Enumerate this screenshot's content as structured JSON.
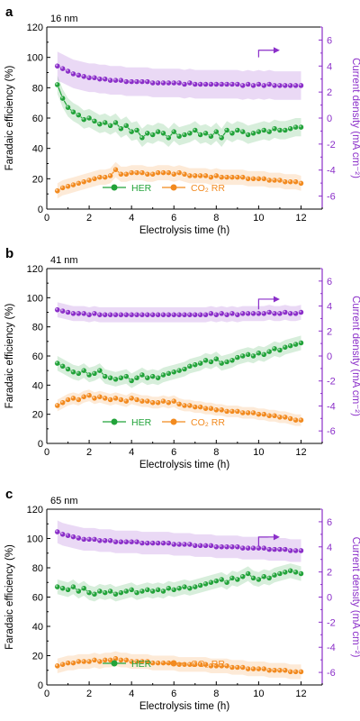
{
  "colors": {
    "her": "#22a33a",
    "co2rr": "#f28a1f",
    "current": "#8b2fc9",
    "axis": "#000000"
  },
  "common": {
    "xlabel": "Electrolysis time (h)",
    "ylabel_left": "Faradaic efficiency (%)",
    "ylabel_right": "Current density (mA cm⁻²)",
    "legend_her": "HER",
    "legend_co2rr": "CO₂ RR"
  },
  "chart_data": [
    {
      "type": "line",
      "panel_label": "a",
      "thickness_label": "16 nm",
      "xlabel": "Electrolysis time (h)",
      "ylabel_left": "Faradaic efficiency (%)",
      "ylabel_right": "Current density (mA cm⁻²)",
      "xlim": [
        0,
        13
      ],
      "ylim_left": [
        0,
        120
      ],
      "ylim_right": [
        -7,
        7
      ],
      "xticks": [
        "0",
        "2",
        "4",
        "6",
        "8",
        "10",
        "12"
      ],
      "yticks_left": [
        "0",
        "20",
        "40",
        "60",
        "80",
        "100",
        "120"
      ],
      "yticks_right": [
        "-6",
        "-4",
        "-2",
        "0",
        "2",
        "4",
        "6"
      ],
      "arrow": {
        "x_from": 10,
        "x_to": 11,
        "y_left": 100,
        "y_top": 104.7
      },
      "series": [
        {
          "name": "HER",
          "axis": "left",
          "band": 6,
          "x": [
            0.5,
            0.75,
            1,
            1.25,
            1.5,
            1.75,
            2,
            2.25,
            2.5,
            2.75,
            3,
            3.25,
            3.5,
            3.75,
            4,
            4.25,
            4.5,
            4.75,
            5,
            5.25,
            5.5,
            5.75,
            6,
            6.25,
            6.5,
            6.75,
            7,
            7.25,
            7.5,
            7.75,
            8,
            8.25,
            8.5,
            8.75,
            9,
            9.25,
            9.5,
            9.75,
            10,
            10.25,
            10.5,
            10.75,
            11,
            11.25,
            11.5,
            11.75,
            12
          ],
          "y": [
            82,
            73,
            67,
            64,
            62,
            59,
            60,
            58,
            56,
            57,
            55,
            57,
            53,
            55,
            51,
            52,
            47,
            50,
            49,
            51,
            50,
            47,
            51,
            48,
            49,
            50,
            52,
            49,
            50,
            48,
            51,
            47,
            52,
            50,
            52,
            51,
            49,
            50,
            51,
            52,
            51,
            53,
            52,
            52,
            53,
            54,
            54
          ]
        },
        {
          "name": "CO₂ RR",
          "axis": "left",
          "band": 5,
          "x": [
            0.5,
            0.75,
            1,
            1.25,
            1.5,
            1.75,
            2,
            2.25,
            2.5,
            2.75,
            3,
            3.25,
            3.5,
            3.75,
            4,
            4.25,
            4.5,
            4.75,
            5,
            5.25,
            5.5,
            5.75,
            6,
            6.25,
            6.5,
            6.75,
            7,
            7.25,
            7.5,
            7.75,
            8,
            8.25,
            8.5,
            8.75,
            9,
            9.25,
            9.5,
            9.75,
            10,
            10.25,
            10.5,
            10.75,
            11,
            11.25,
            11.5,
            11.75,
            12
          ],
          "y": [
            12,
            14,
            15,
            16,
            17,
            18,
            19,
            20,
            21,
            21,
            22,
            26,
            23,
            23,
            24,
            24,
            24,
            23,
            23,
            24,
            24,
            24,
            23,
            24,
            23,
            22,
            22,
            22,
            22,
            21,
            22,
            21,
            21,
            21,
            21,
            21,
            20,
            20,
            20,
            20,
            19,
            19,
            19,
            18,
            18,
            18,
            17
          ]
        },
        {
          "name": "Current density",
          "axis": "right",
          "band": 1.1,
          "x": [
            0.5,
            0.75,
            1,
            1.25,
            1.5,
            1.75,
            2,
            2.25,
            2.5,
            2.75,
            3,
            3.25,
            3.5,
            3.75,
            4,
            4.25,
            4.5,
            4.75,
            5,
            5.25,
            5.5,
            5.75,
            6,
            6.25,
            6.5,
            6.75,
            7,
            7.25,
            7.5,
            7.75,
            8,
            8.25,
            8.5,
            8.75,
            9,
            9.25,
            9.5,
            9.75,
            10,
            10.25,
            10.5,
            10.75,
            11,
            11.25,
            11.5,
            11.75,
            12
          ],
          "y": [
            4.0,
            3.8,
            3.6,
            3.4,
            3.3,
            3.2,
            3.1,
            3.1,
            3.0,
            3.0,
            2.9,
            2.9,
            2.9,
            2.8,
            2.8,
            2.8,
            2.8,
            2.8,
            2.7,
            2.7,
            2.7,
            2.7,
            2.7,
            2.7,
            2.6,
            2.7,
            2.6,
            2.6,
            2.6,
            2.6,
            2.6,
            2.6,
            2.6,
            2.6,
            2.6,
            2.5,
            2.6,
            2.5,
            2.6,
            2.5,
            2.6,
            2.5,
            2.5,
            2.5,
            2.5,
            2.5,
            2.5
          ]
        }
      ]
    },
    {
      "type": "line",
      "panel_label": "b",
      "thickness_label": "41 nm",
      "xlabel": "Electrolysis time (h)",
      "ylabel_left": "Faradaic efficiency (%)",
      "ylabel_right": "Current density (mA cm⁻²)",
      "xlim": [
        0,
        13
      ],
      "ylim_left": [
        0,
        120
      ],
      "ylim_right": [
        -7,
        7
      ],
      "xticks": [
        "0",
        "2",
        "4",
        "6",
        "8",
        "10",
        "12"
      ],
      "yticks_left": [
        "0",
        "20",
        "40",
        "60",
        "80",
        "100",
        "120"
      ],
      "yticks_right": [
        "-6",
        "-4",
        "-2",
        "0",
        "2",
        "4",
        "6"
      ],
      "arrow": {
        "x_from": 10,
        "x_to": 11,
        "y_left": 92,
        "y_top": 99
      },
      "series": [
        {
          "name": "HER",
          "axis": "left",
          "band": 5,
          "x": [
            0.5,
            0.75,
            1,
            1.25,
            1.5,
            1.75,
            2,
            2.25,
            2.5,
            2.75,
            3,
            3.25,
            3.5,
            3.75,
            4,
            4.25,
            4.5,
            4.75,
            5,
            5.25,
            5.5,
            5.75,
            6,
            6.25,
            6.5,
            6.75,
            7,
            7.25,
            7.5,
            7.75,
            8,
            8.25,
            8.5,
            8.75,
            9,
            9.25,
            9.5,
            9.75,
            10,
            10.25,
            10.5,
            10.75,
            11,
            11.25,
            11.5,
            11.75,
            12
          ],
          "y": [
            55,
            53,
            51,
            49,
            48,
            50,
            47,
            48,
            50,
            46,
            45,
            44,
            45,
            46,
            43,
            45,
            47,
            45,
            46,
            45,
            47,
            48,
            49,
            50,
            51,
            53,
            54,
            55,
            57,
            56,
            58,
            55,
            56,
            57,
            59,
            60,
            61,
            60,
            62,
            61,
            63,
            65,
            64,
            66,
            67,
            68,
            69
          ]
        },
        {
          "name": "CO₂ RR",
          "axis": "left",
          "band": 4,
          "x": [
            0.5,
            0.75,
            1,
            1.25,
            1.5,
            1.75,
            2,
            2.25,
            2.5,
            2.75,
            3,
            3.25,
            3.5,
            3.75,
            4,
            4.25,
            4.5,
            4.75,
            5,
            5.25,
            5.5,
            5.75,
            6,
            6.25,
            6.5,
            6.75,
            7,
            7.25,
            7.5,
            7.75,
            8,
            8.25,
            8.5,
            8.75,
            9,
            9.25,
            9.5,
            9.75,
            10,
            10.25,
            10.5,
            10.75,
            11,
            11.25,
            11.5,
            11.75,
            12
          ],
          "y": [
            26,
            28,
            30,
            31,
            30,
            32,
            33,
            31,
            32,
            31,
            30,
            31,
            30,
            29,
            31,
            30,
            29,
            29,
            28,
            28,
            29,
            28,
            29,
            27,
            26,
            26,
            25,
            25,
            24,
            24,
            23,
            23,
            22,
            22,
            22,
            21,
            21,
            21,
            20,
            20,
            19,
            19,
            18,
            18,
            17,
            16,
            16
          ]
        },
        {
          "name": "Current density",
          "axis": "right",
          "band": 0.6,
          "x": [
            0.5,
            0.75,
            1,
            1.25,
            1.5,
            1.75,
            2,
            2.25,
            2.5,
            2.75,
            3,
            3.25,
            3.5,
            3.75,
            4,
            4.25,
            4.5,
            4.75,
            5,
            5.25,
            5.5,
            5.75,
            6,
            6.25,
            6.5,
            6.75,
            7,
            7.25,
            7.5,
            7.75,
            8,
            8.25,
            8.5,
            8.75,
            9,
            9.25,
            9.5,
            9.75,
            10,
            10.25,
            10.5,
            10.75,
            11,
            11.25,
            11.5,
            11.75,
            12
          ],
          "y": [
            3.7,
            3.6,
            3.5,
            3.4,
            3.4,
            3.4,
            3.3,
            3.4,
            3.3,
            3.3,
            3.3,
            3.3,
            3.3,
            3.3,
            3.3,
            3.3,
            3.3,
            3.3,
            3.3,
            3.3,
            3.3,
            3.3,
            3.3,
            3.3,
            3.3,
            3.3,
            3.3,
            3.3,
            3.3,
            3.4,
            3.3,
            3.4,
            3.3,
            3.4,
            3.3,
            3.4,
            3.4,
            3.4,
            3.4,
            3.4,
            3.5,
            3.4,
            3.4,
            3.5,
            3.4,
            3.4,
            3.5
          ]
        }
      ]
    },
    {
      "type": "line",
      "panel_label": "c",
      "thickness_label": "65 nm",
      "xlabel": "Electrolysis time (h)",
      "ylabel_left": "Faradaic efficiency (%)",
      "ylabel_right": "Current density (mA cm⁻²)",
      "xlim": [
        0,
        13
      ],
      "ylim_left": [
        0,
        120
      ],
      "ylim_right": [
        -7,
        7
      ],
      "xticks": [
        "0",
        "2",
        "4",
        "6",
        "8",
        "10",
        "12"
      ],
      "yticks_left": [
        "0",
        "20",
        "40",
        "60",
        "80",
        "100",
        "120"
      ],
      "yticks_right": [
        "-6",
        "-4",
        "-2",
        "0",
        "2",
        "4",
        "6"
      ],
      "arrow": {
        "x_from": 10,
        "x_to": 11,
        "y_left": 95,
        "y_top": 101
      },
      "series": [
        {
          "name": "HER",
          "axis": "left",
          "band": 5,
          "x": [
            0.5,
            0.75,
            1,
            1.25,
            1.5,
            1.75,
            2,
            2.25,
            2.5,
            2.75,
            3,
            3.25,
            3.5,
            3.75,
            4,
            4.25,
            4.5,
            4.75,
            5,
            5.25,
            5.5,
            5.75,
            6,
            6.25,
            6.5,
            6.75,
            7,
            7.25,
            7.5,
            7.75,
            8,
            8.25,
            8.5,
            8.75,
            9,
            9.25,
            9.5,
            9.75,
            10,
            10.25,
            10.5,
            10.75,
            11,
            11.25,
            11.5,
            11.75,
            12
          ],
          "y": [
            67,
            66,
            65,
            67,
            64,
            66,
            63,
            62,
            64,
            63,
            64,
            62,
            63,
            64,
            65,
            63,
            64,
            65,
            64,
            65,
            64,
            66,
            65,
            66,
            67,
            66,
            67,
            68,
            69,
            70,
            71,
            72,
            70,
            73,
            72,
            74,
            76,
            73,
            72,
            74,
            73,
            75,
            76,
            77,
            78,
            77,
            76
          ]
        },
        {
          "name": "CO₂ RR",
          "axis": "left",
          "band": 5,
          "x": [
            0.5,
            0.75,
            1,
            1.25,
            1.5,
            1.75,
            2,
            2.25,
            2.5,
            2.75,
            3,
            3.25,
            3.5,
            3.75,
            4,
            4.25,
            4.5,
            4.75,
            5,
            5.25,
            5.5,
            5.75,
            6,
            6.25,
            6.5,
            6.75,
            7,
            7.25,
            7.5,
            7.75,
            8,
            8.25,
            8.5,
            8.75,
            9,
            9.25,
            9.5,
            9.75,
            10,
            10.25,
            10.5,
            10.75,
            11,
            11.25,
            11.5,
            11.75,
            12
          ],
          "y": [
            13,
            14,
            15,
            15,
            16,
            16,
            16,
            17,
            16,
            17,
            17,
            18,
            17,
            17,
            16,
            16,
            16,
            16,
            15,
            15,
            15,
            15,
            15,
            14,
            14,
            14,
            14,
            14,
            14,
            13,
            13,
            13,
            13,
            12,
            12,
            12,
            11,
            11,
            11,
            11,
            10,
            10,
            10,
            10,
            9,
            9,
            9
          ]
        },
        {
          "name": "Current density",
          "axis": "right",
          "band": 0.9,
          "x": [
            0.5,
            0.75,
            1,
            1.25,
            1.5,
            1.75,
            2,
            2.25,
            2.5,
            2.75,
            3,
            3.25,
            3.5,
            3.75,
            4,
            4.25,
            4.5,
            4.75,
            5,
            5.25,
            5.5,
            5.75,
            6,
            6.25,
            6.5,
            6.75,
            7,
            7.25,
            7.5,
            7.75,
            8,
            8.25,
            8.5,
            8.75,
            9,
            9.25,
            9.5,
            9.75,
            10,
            10.25,
            10.5,
            10.75,
            11,
            11.25,
            11.5,
            11.75,
            12
          ],
          "y": [
            5.2,
            5.0,
            4.9,
            4.8,
            4.7,
            4.6,
            4.6,
            4.6,
            4.5,
            4.5,
            4.5,
            4.4,
            4.4,
            4.4,
            4.4,
            4.4,
            4.3,
            4.3,
            4.3,
            4.3,
            4.3,
            4.3,
            4.2,
            4.2,
            4.2,
            4.2,
            4.1,
            4.1,
            4.1,
            4.1,
            4.0,
            4.0,
            4.0,
            4.0,
            4.0,
            3.9,
            3.9,
            3.9,
            3.9,
            3.9,
            3.8,
            3.8,
            3.8,
            3.8,
            3.7,
            3.7,
            3.7
          ]
        }
      ]
    }
  ]
}
